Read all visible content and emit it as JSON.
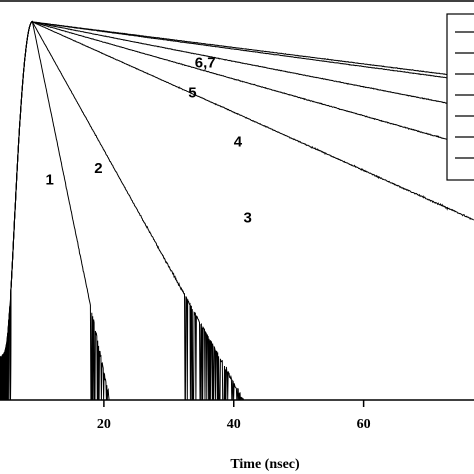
{
  "chart_data": {
    "type": "line",
    "title": "",
    "xlabel": "Time (nsec)",
    "ylabel": "",
    "x_ticks": [
      20,
      40,
      60
    ],
    "xlim": [
      4,
      77
    ],
    "ylim": [
      0,
      1
    ],
    "y_scale": "log",
    "grid": false,
    "legend": "top-right",
    "peak_time": 9,
    "series": [
      {
        "name": "1",
        "label": "1",
        "decay_ns": 2.2,
        "label_at": [
          11,
          0.57
        ]
      },
      {
        "name": "2",
        "label": "2",
        "decay_ns": 6,
        "label_at": [
          18.5,
          0.6
        ]
      },
      {
        "name": "3",
        "label": "3",
        "decay_ns": 24,
        "label_at": [
          41.5,
          0.47
        ]
      },
      {
        "name": "4",
        "label": "4",
        "decay_ns": 38,
        "label_at": [
          40,
          0.67
        ]
      },
      {
        "name": "5",
        "label": "5",
        "decay_ns": 55,
        "label_at": [
          33,
          0.8
        ]
      },
      {
        "name": "6",
        "label": "6,7",
        "decay_ns": 80,
        "label_at": [
          34,
          0.88
        ]
      },
      {
        "name": "7",
        "label": "",
        "decay_ns": 85
      }
    ],
    "legend_entries": [
      "",
      "",
      "",
      "",
      "",
      "",
      ""
    ]
  }
}
